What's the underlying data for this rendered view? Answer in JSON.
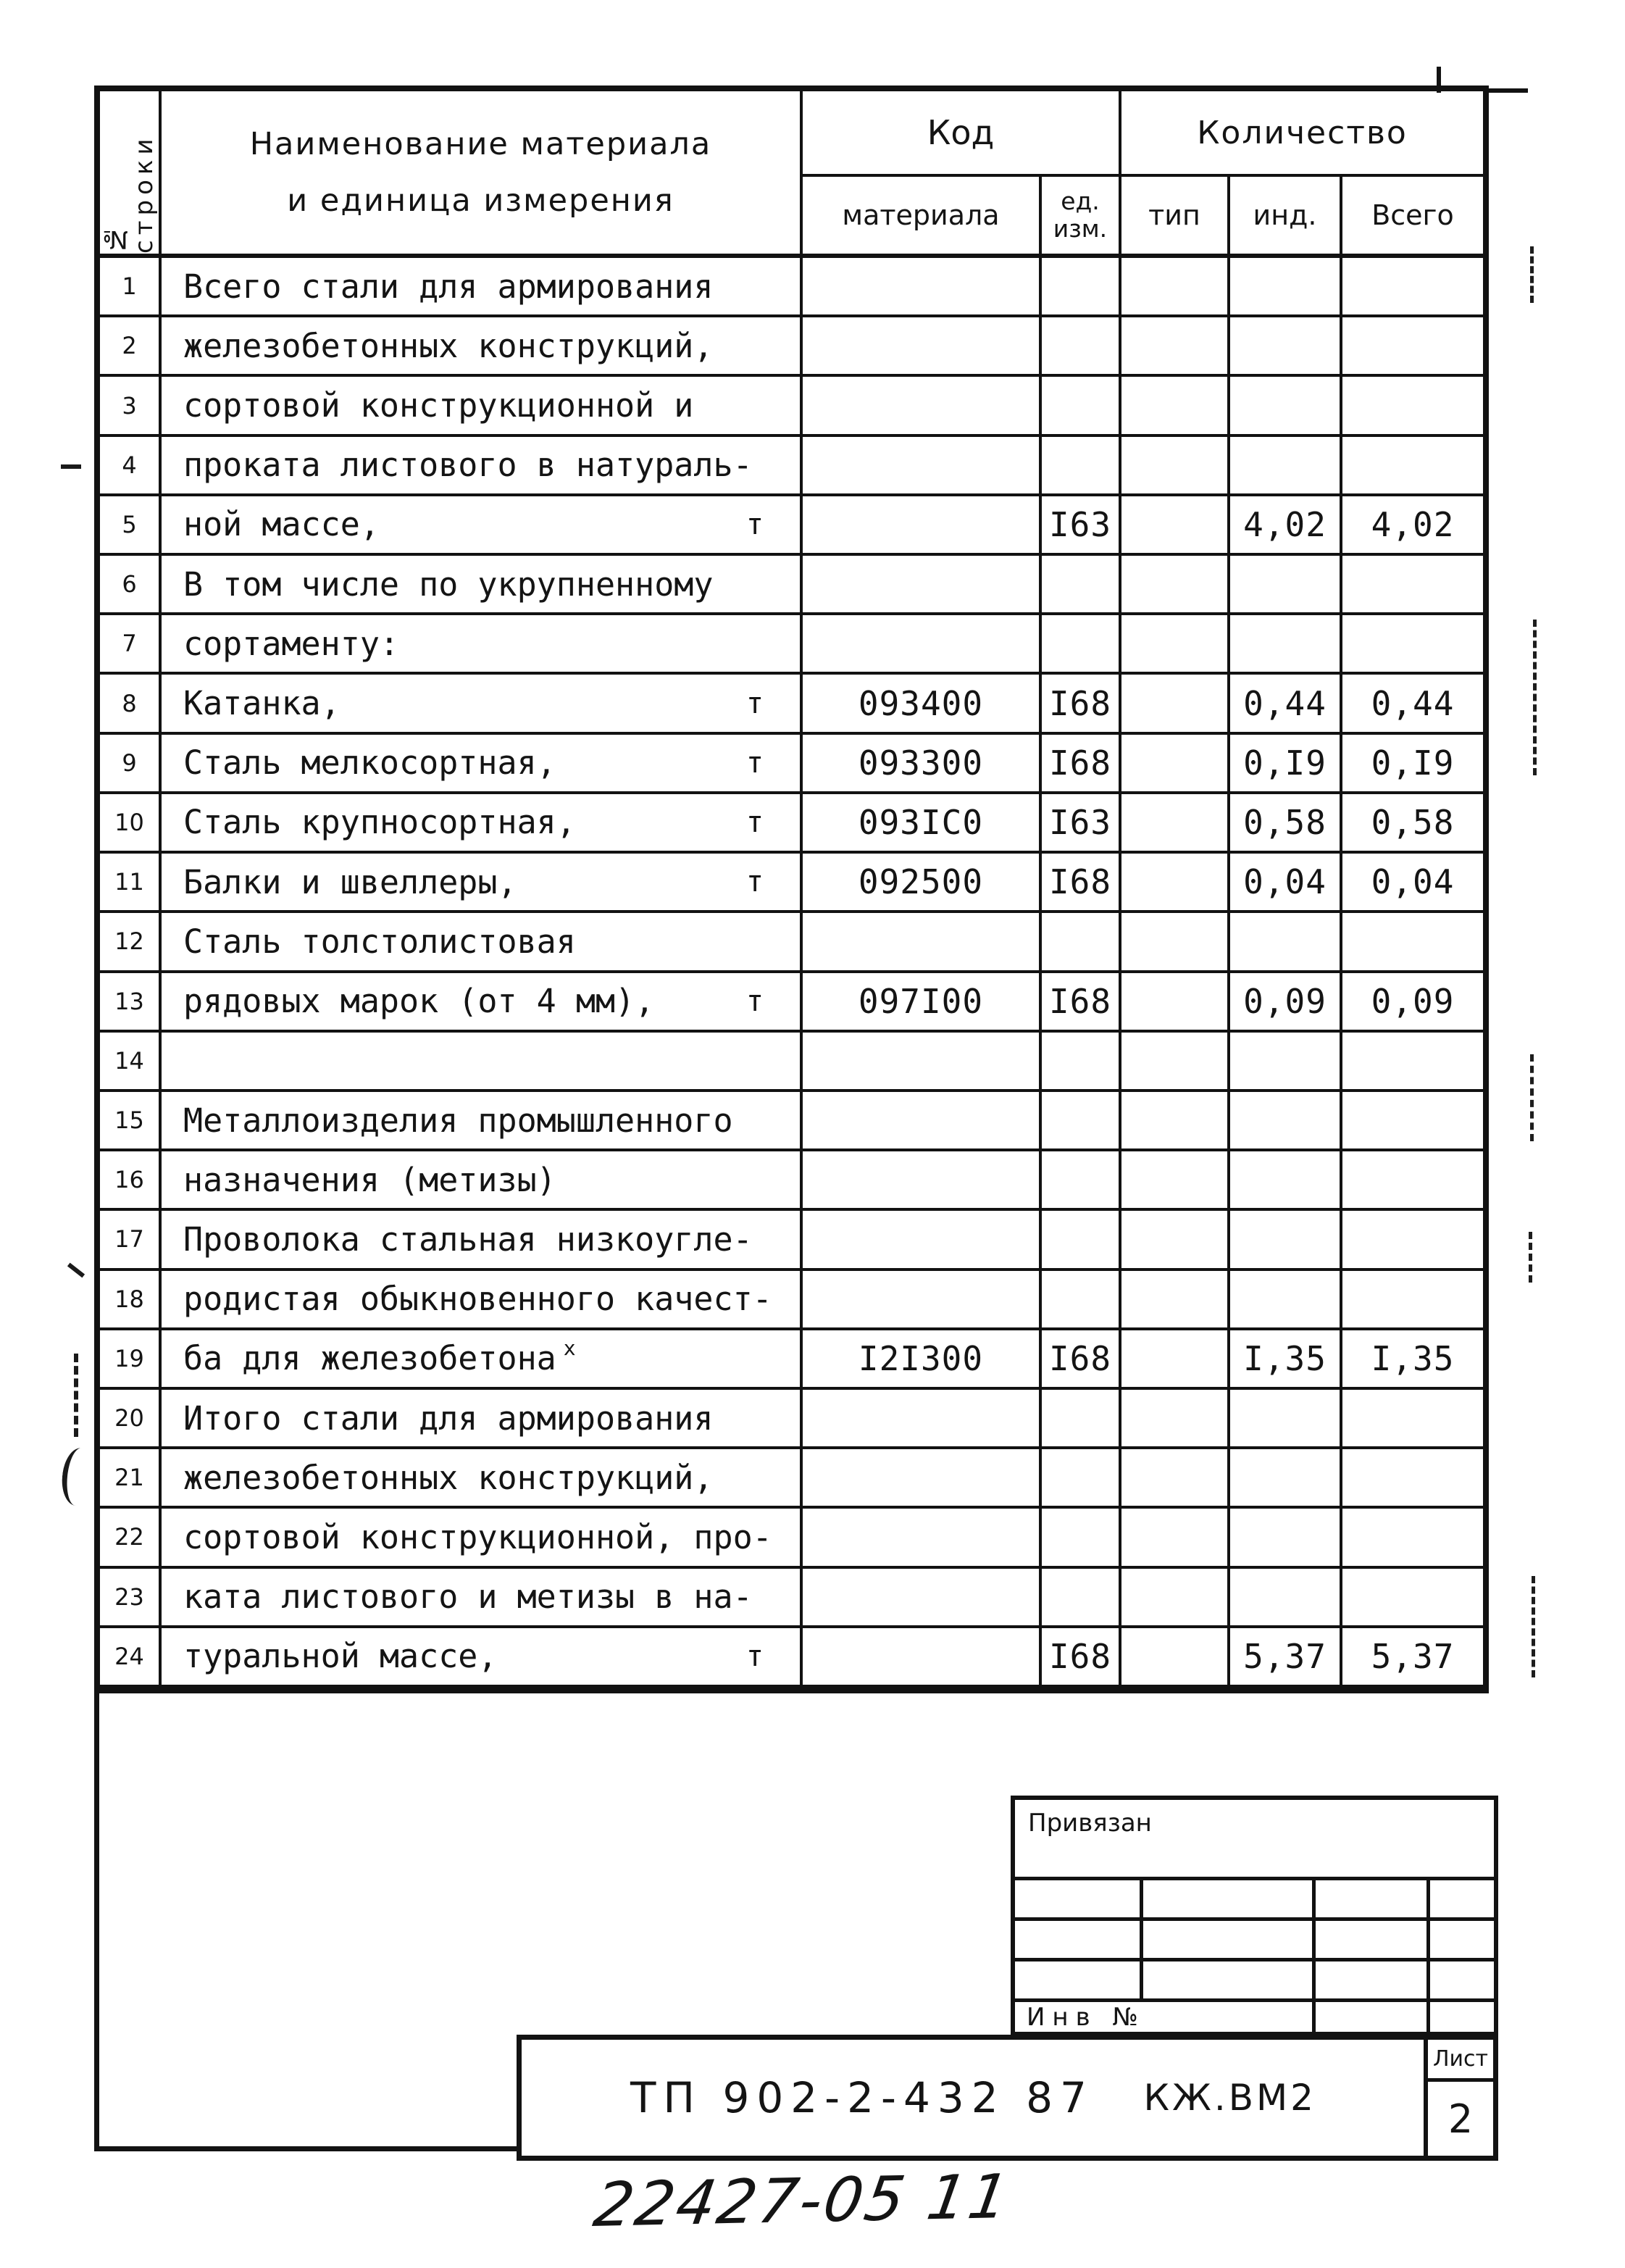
{
  "colors": {
    "ink": "#141414",
    "paper": "#ffffff"
  },
  "table": {
    "header": {
      "row_col_vertical": "№ строки",
      "name_col": [
        "Наименование материала",
        "и единица измерения"
      ],
      "code_group": "Код",
      "qty_group": "Количество",
      "sub": {
        "material": "материала",
        "unit": "ед. изм.",
        "type": "тип",
        "ind": "инд.",
        "total": "Всего"
      }
    },
    "rows": [
      {
        "num": "1",
        "name": "Всего стали для армирования",
        "unit": "",
        "code": "",
        "ed": "",
        "tip": "",
        "ind": "",
        "total": ""
      },
      {
        "num": "2",
        "name": "железобетонных конструкций,",
        "unit": "",
        "code": "",
        "ed": "",
        "tip": "",
        "ind": "",
        "total": ""
      },
      {
        "num": "3",
        "name": "сортовой конструкционной и",
        "unit": "",
        "code": "",
        "ed": "",
        "tip": "",
        "ind": "",
        "total": ""
      },
      {
        "num": "4",
        "name": "проката листового в натураль-",
        "unit": "",
        "code": "",
        "ed": "",
        "tip": "",
        "ind": "",
        "total": ""
      },
      {
        "num": "5",
        "name": "ной массе,",
        "unit": "т",
        "code": "",
        "ed": "I63",
        "tip": "",
        "ind": "4,02",
        "total": "4,02"
      },
      {
        "num": "6",
        "name": "В том числе по укрупненному",
        "unit": "",
        "code": "",
        "ed": "",
        "tip": "",
        "ind": "",
        "total": ""
      },
      {
        "num": "7",
        "name": "сортаменту:",
        "unit": "",
        "code": "",
        "ed": "",
        "tip": "",
        "ind": "",
        "total": ""
      },
      {
        "num": "8",
        "name": "Катанка,",
        "unit": "т",
        "code": "093400",
        "ed": "I68",
        "tip": "",
        "ind": "0,44",
        "total": "0,44"
      },
      {
        "num": "9",
        "name": "Сталь мелкосортная,",
        "unit": "т",
        "code": "093300",
        "ed": "I68",
        "tip": "",
        "ind": "0,I9",
        "total": "0,I9"
      },
      {
        "num": "10",
        "name": "Сталь крупносортная,",
        "unit": "т",
        "code": "093IC0",
        "ed": "I63",
        "tip": "",
        "ind": "0,58",
        "total": "0,58"
      },
      {
        "num": "11",
        "name": "Балки и швеллеры,",
        "unit": "т",
        "code": "092500",
        "ed": "I68",
        "tip": "",
        "ind": "0,04",
        "total": "0,04"
      },
      {
        "num": "12",
        "name": "Сталь толстолистовая",
        "unit": "",
        "code": "",
        "ed": "",
        "tip": "",
        "ind": "",
        "total": ""
      },
      {
        "num": "13",
        "name": "рядовых марок (от 4 мм),",
        "unit": "т",
        "code": "097I00",
        "ed": "I68",
        "tip": "",
        "ind": "0,09",
        "total": "0,09"
      },
      {
        "num": "14",
        "name": "",
        "unit": "",
        "code": "",
        "ed": "",
        "tip": "",
        "ind": "",
        "total": ""
      },
      {
        "num": "15",
        "name": "Металлоизделия промышленного",
        "unit": "",
        "code": "",
        "ed": "",
        "tip": "",
        "ind": "",
        "total": ""
      },
      {
        "num": "16",
        "name": "назначения (метизы)",
        "unit": "",
        "code": "",
        "ed": "",
        "tip": "",
        "ind": "",
        "total": ""
      },
      {
        "num": "17",
        "name": "Проволока стальная низкоугле-",
        "unit": "",
        "code": "",
        "ed": "",
        "tip": "",
        "ind": "",
        "total": ""
      },
      {
        "num": "18",
        "name": "родистая обыкновенного качест-",
        "unit": "",
        "code": "",
        "ed": "",
        "tip": "",
        "ind": "",
        "total": ""
      },
      {
        "num": "19",
        "name": "ба для железобетона",
        "footnote": "х",
        "unit": "",
        "code": "I2I300",
        "ed": "I68",
        "tip": "",
        "ind": "I,35",
        "total": "I,35"
      },
      {
        "num": "20",
        "name": "Итого стали для армирования",
        "unit": "",
        "code": "",
        "ed": "",
        "tip": "",
        "ind": "",
        "total": ""
      },
      {
        "num": "21",
        "name": "железобетонных конструкций,",
        "unit": "",
        "code": "",
        "ed": "",
        "tip": "",
        "ind": "",
        "total": ""
      },
      {
        "num": "22",
        "name": "сортовой конструкционной, про-",
        "unit": "",
        "code": "",
        "ed": "",
        "tip": "",
        "ind": "",
        "total": ""
      },
      {
        "num": "23",
        "name": "ката листового и метизы в на-",
        "unit": "",
        "code": "",
        "ed": "",
        "tip": "",
        "ind": "",
        "total": ""
      },
      {
        "num": "24",
        "name": "туральной массе,",
        "unit": "т",
        "code": "",
        "ed": "I68",
        "tip": "",
        "ind": "5,37",
        "total": "5,37"
      }
    ]
  },
  "binding_block": {
    "label": "Привязан",
    "inv_label": "Инв №"
  },
  "title_block": {
    "doc_number": "ТП 902-2-432 87",
    "doc_code": "КЖ.ВМ2",
    "sheet_label": "Лист",
    "sheet_number": "2"
  },
  "handwritten_number": "22427-05 11"
}
